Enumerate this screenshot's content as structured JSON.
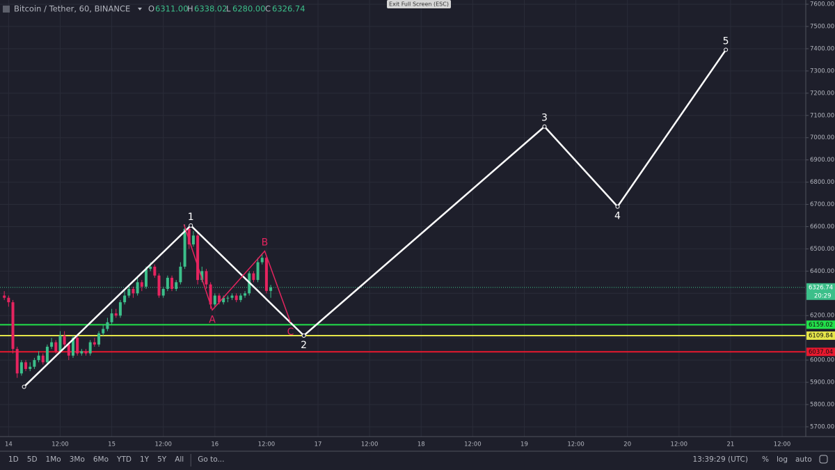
{
  "header": {
    "symbol": "Bitcoin / Tether, 60, BINANCE",
    "o_label": "O",
    "o": "6311.00",
    "h_label": "H",
    "h": "6338.02",
    "l_label": "L",
    "l": "6280.00",
    "c_label": "C",
    "c": "6326.74"
  },
  "exit_button": "Exit Full Screen (ESC)",
  "toolbar": {
    "ranges": [
      "1D",
      "5D",
      "1Mo",
      "3Mo",
      "6Mo",
      "YTD",
      "1Y",
      "5Y",
      "All"
    ],
    "goto": "Go to...",
    "time": "13:39:29 (UTC)",
    "percent": "%",
    "log": "log",
    "auto": "auto"
  },
  "chart_data": {
    "type": "candlestick",
    "x": [
      -1,
      0,
      1,
      2,
      3,
      4,
      5,
      6,
      7,
      8,
      9,
      10,
      11,
      12,
      13,
      14,
      15,
      16,
      17,
      18,
      19,
      20,
      21,
      22,
      23,
      24,
      25,
      26,
      27,
      28,
      29,
      30,
      31,
      32,
      33,
      34,
      35,
      36,
      37,
      38,
      39,
      40,
      41,
      42,
      43,
      44,
      45,
      46,
      47,
      48,
      49,
      50,
      51,
      52,
      53,
      54,
      55,
      56,
      57,
      58,
      59,
      60,
      61
    ],
    "open": [
      6290,
      6280,
      6260,
      6050,
      5940,
      5990,
      5960,
      5970,
      6000,
      6020,
      5990,
      6060,
      6080,
      6040,
      6110,
      6070,
      6020,
      6100,
      6030,
      6040,
      6030,
      6080,
      6070,
      6120,
      6140,
      6170,
      6210,
      6200,
      6260,
      6290,
      6320,
      6300,
      6350,
      6330,
      6410,
      6420,
      6380,
      6290,
      6320,
      6370,
      6320,
      6350,
      6420,
      6590,
      6520,
      6560,
      6360,
      6400,
      6340,
      6250,
      6290,
      6260,
      6280,
      6280,
      6290,
      6270,
      6290,
      6300,
      6390,
      6360,
      6440,
      6460,
      6311
    ],
    "high": [
      6310,
      6290,
      6270,
      6060,
      6000,
      6000,
      5990,
      6010,
      6040,
      6030,
      6070,
      6100,
      6090,
      6130,
      6130,
      6080,
      6110,
      6110,
      6050,
      6050,
      6090,
      6100,
      6130,
      6160,
      6190,
      6230,
      6230,
      6270,
      6310,
      6340,
      6330,
      6370,
      6360,
      6420,
      6440,
      6430,
      6390,
      6330,
      6380,
      6380,
      6360,
      6440,
      6610,
      6600,
      6580,
      6570,
      6420,
      6410,
      6350,
      6300,
      6300,
      6290,
      6290,
      6300,
      6300,
      6300,
      6310,
      6400,
      6400,
      6460,
      6480,
      6470,
      6338.02
    ],
    "low": [
      6270,
      6240,
      6030,
      5920,
      5930,
      5950,
      5950,
      5960,
      5990,
      5980,
      5980,
      6050,
      6030,
      6030,
      6060,
      6000,
      6010,
      6020,
      6020,
      6020,
      6020,
      6060,
      6060,
      6110,
      6130,
      6160,
      6190,
      6190,
      6250,
      6280,
      6280,
      6290,
      6310,
      6320,
      6400,
      6370,
      6280,
      6280,
      6310,
      6310,
      6310,
      6340,
      6410,
      6500,
      6510,
      6340,
      6350,
      6320,
      6230,
      6240,
      6250,
      6250,
      6260,
      6270,
      6260,
      6260,
      6280,
      6290,
      6350,
      6350,
      6430,
      6300,
      6280
    ],
    "close": [
      6280,
      6260,
      6050,
      5940,
      5990,
      5960,
      5970,
      6000,
      6020,
      5990,
      6060,
      6080,
      6040,
      6110,
      6070,
      6020,
      6100,
      6030,
      6040,
      6030,
      6080,
      6070,
      6120,
      6140,
      6170,
      6210,
      6200,
      6260,
      6290,
      6320,
      6300,
      6350,
      6330,
      6410,
      6420,
      6380,
      6290,
      6320,
      6370,
      6320,
      6350,
      6420,
      6590,
      6520,
      6560,
      6360,
      6400,
      6340,
      6250,
      6290,
      6260,
      6280,
      6280,
      6290,
      6270,
      6290,
      6300,
      6390,
      6360,
      6440,
      6460,
      6311,
      6326.74
    ],
    "up_color": "#3cbf8a",
    "down_color": "#e5245f",
    "xlim": [
      -2,
      185.5
    ],
    "xticks": [
      {
        "value": 0,
        "label": "14"
      },
      {
        "value": 12,
        "label": "12:00"
      },
      {
        "value": 24,
        "label": "15"
      },
      {
        "value": 36,
        "label": "12:00"
      },
      {
        "value": 48,
        "label": "16"
      },
      {
        "value": 60,
        "label": "12:00"
      },
      {
        "value": 72,
        "label": "17"
      },
      {
        "value": 84,
        "label": "12:00"
      },
      {
        "value": 96,
        "label": "18"
      },
      {
        "value": 108,
        "label": "12:00"
      },
      {
        "value": 120,
        "label": "19"
      },
      {
        "value": 132,
        "label": "12:00"
      },
      {
        "value": 144,
        "label": "20"
      },
      {
        "value": 156,
        "label": "12:00"
      },
      {
        "value": 168,
        "label": "21"
      },
      {
        "value": 180,
        "label": "12:00"
      }
    ],
    "ylim": [
      5656,
      7619
    ],
    "yticks": [
      {
        "value": 5700,
        "label": "5700.00"
      },
      {
        "value": 5800,
        "label": "5800.00"
      },
      {
        "value": 5900,
        "label": "5900.00"
      },
      {
        "value": 6000,
        "label": "6000.00"
      },
      {
        "value": 6100,
        "label": "6100.00"
      },
      {
        "value": 6200,
        "label": "6200.00"
      },
      {
        "value": 6300,
        "label": "6300.00"
      },
      {
        "value": 6400,
        "label": "6400.00"
      },
      {
        "value": 6500,
        "label": "6500.00"
      },
      {
        "value": 6600,
        "label": "6600.00"
      },
      {
        "value": 6700,
        "label": "6700.00"
      },
      {
        "value": 6800,
        "label": "6800.00"
      },
      {
        "value": 6900,
        "label": "6900.00"
      },
      {
        "value": 7000,
        "label": "7000.00"
      },
      {
        "value": 7100,
        "label": "7100.00"
      },
      {
        "value": 7200,
        "label": "7200.00"
      },
      {
        "value": 7300,
        "label": "7300.00"
      },
      {
        "value": 7400,
        "label": "7400.00"
      },
      {
        "value": 7500,
        "label": "7500.00"
      },
      {
        "value": 7600,
        "label": "7600.00"
      }
    ],
    "grid": true,
    "last_price": {
      "value": 6326.74,
      "color": "#3cbf8a",
      "countdown": "20:29"
    },
    "hlines": [
      {
        "value": 6159.02,
        "color": "#22e04a"
      },
      {
        "value": 6109.84,
        "color": "#e6e64a"
      },
      {
        "value": 6037.04,
        "color": "#e8182e"
      }
    ],
    "waves": [
      {
        "color": "#ffffff",
        "points": [
          {
            "x": 3.6,
            "y": 5880
          },
          {
            "x": 42.4,
            "y": 6605,
            "label": "1"
          },
          {
            "x": 68.7,
            "y": 6110,
            "label": "2"
          },
          {
            "x": 124.7,
            "y": 7050,
            "label": "3"
          },
          {
            "x": 141.7,
            "y": 6690,
            "label": "4"
          },
          {
            "x": 166.9,
            "y": 7395,
            "label": "5"
          }
        ]
      },
      {
        "color": "#e5245f",
        "points": [
          {
            "x": 40.8,
            "y": 6610
          },
          {
            "x": 47.4,
            "y": 6225,
            "label": "A"
          },
          {
            "x": 59.6,
            "y": 6490,
            "label": "B"
          },
          {
            "x": 65.6,
            "y": 6170,
            "label": "C"
          }
        ]
      }
    ]
  }
}
